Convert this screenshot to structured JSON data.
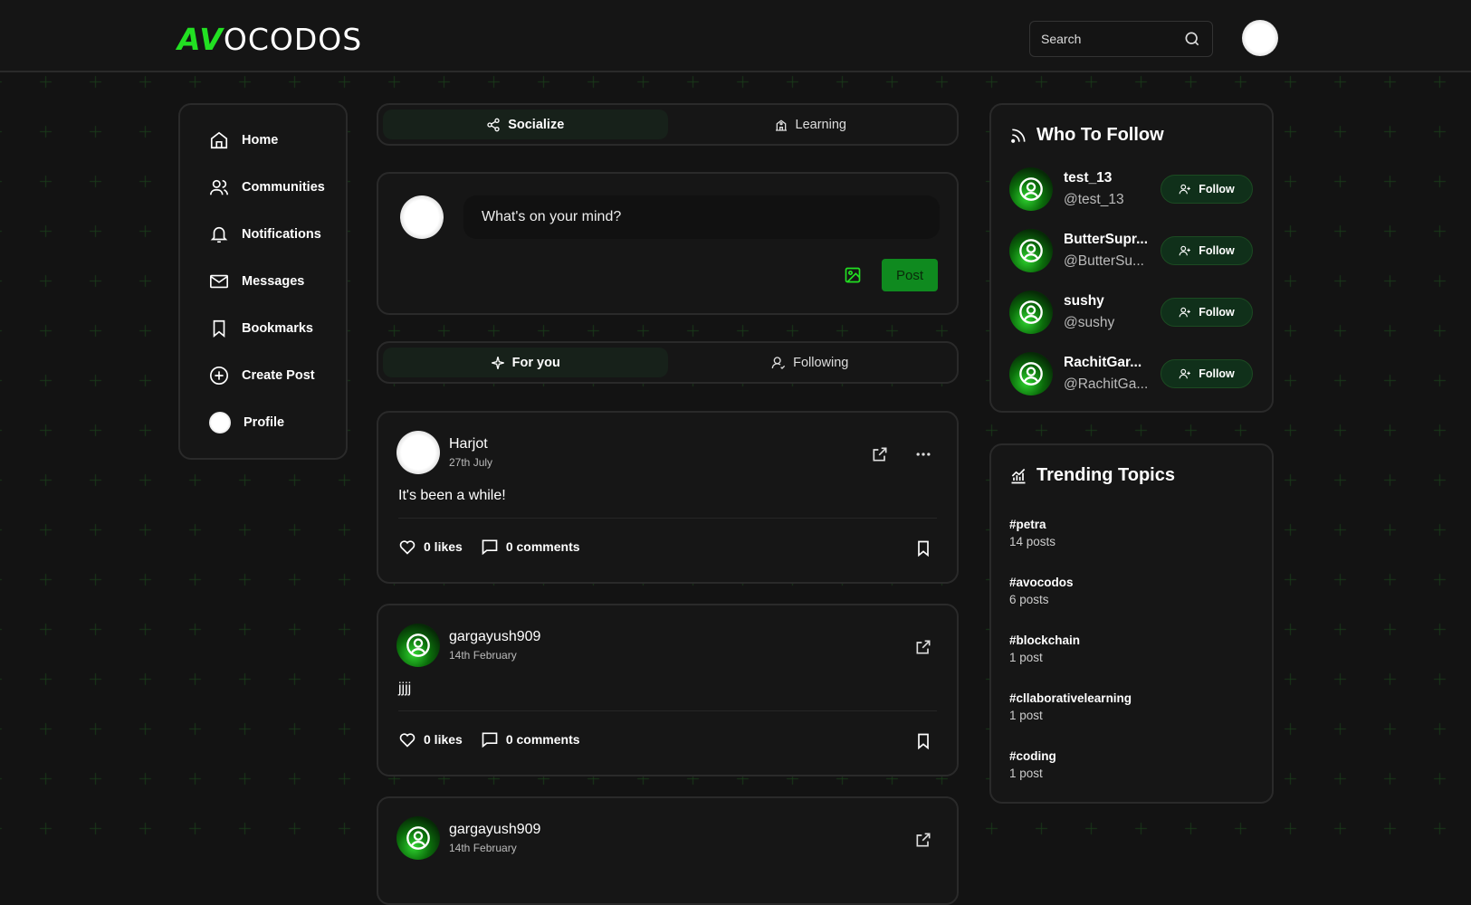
{
  "header": {
    "logo_accent": "AV",
    "logo_rest": "OCODOS",
    "search_placeholder": "Search"
  },
  "sidebar": {
    "items": [
      {
        "label": "Home",
        "icon": "home-icon"
      },
      {
        "label": "Communities",
        "icon": "users-icon"
      },
      {
        "label": "Notifications",
        "icon": "bell-icon"
      },
      {
        "label": "Messages",
        "icon": "mail-icon"
      },
      {
        "label": "Bookmarks",
        "icon": "bookmark-icon"
      },
      {
        "label": "Create Post",
        "icon": "plus-circle-icon"
      },
      {
        "label": "Profile",
        "icon": "avatar"
      }
    ]
  },
  "mode_tabs": [
    {
      "label": "Socialize",
      "active": true
    },
    {
      "label": "Learning",
      "active": false
    }
  ],
  "composer": {
    "placeholder": "What's on your mind?",
    "post_label": "Post"
  },
  "feed_tabs": [
    {
      "label": "For you",
      "active": true
    },
    {
      "label": "Following",
      "active": false
    }
  ],
  "posts": [
    {
      "author": "Harjot",
      "date": "27th July",
      "body": "It's been a while!",
      "likes": "0 likes",
      "comments": "0 comments"
    },
    {
      "author": "gargayush909",
      "date": "14th February",
      "body": "jjjj",
      "likes": "0 likes",
      "comments": "0 comments"
    },
    {
      "author": "gargayush909",
      "date": "14th February"
    }
  ],
  "who_to_follow": {
    "title": "Who To Follow",
    "follow_label": "Follow",
    "users": [
      {
        "name": "test_13",
        "handle": "@test_13"
      },
      {
        "name": "ButterSupr...",
        "handle": "@ButterSu..."
      },
      {
        "name": "sushy",
        "handle": "@sushy"
      },
      {
        "name": "RachitGar...",
        "handle": "@RachitGa..."
      }
    ]
  },
  "trending": {
    "title": "Trending Topics",
    "topics": [
      {
        "tag": "#petra",
        "count": "14 posts"
      },
      {
        "tag": "#avocodos",
        "count": "6 posts"
      },
      {
        "tag": "#blockchain",
        "count": "1 post"
      },
      {
        "tag": "#cllaborativelearning",
        "count": "1 post"
      },
      {
        "tag": "#coding",
        "count": "1 post"
      }
    ]
  },
  "colors": {
    "accent": "#22e022",
    "post_button": "#0f8a1f",
    "background": "#131313"
  }
}
